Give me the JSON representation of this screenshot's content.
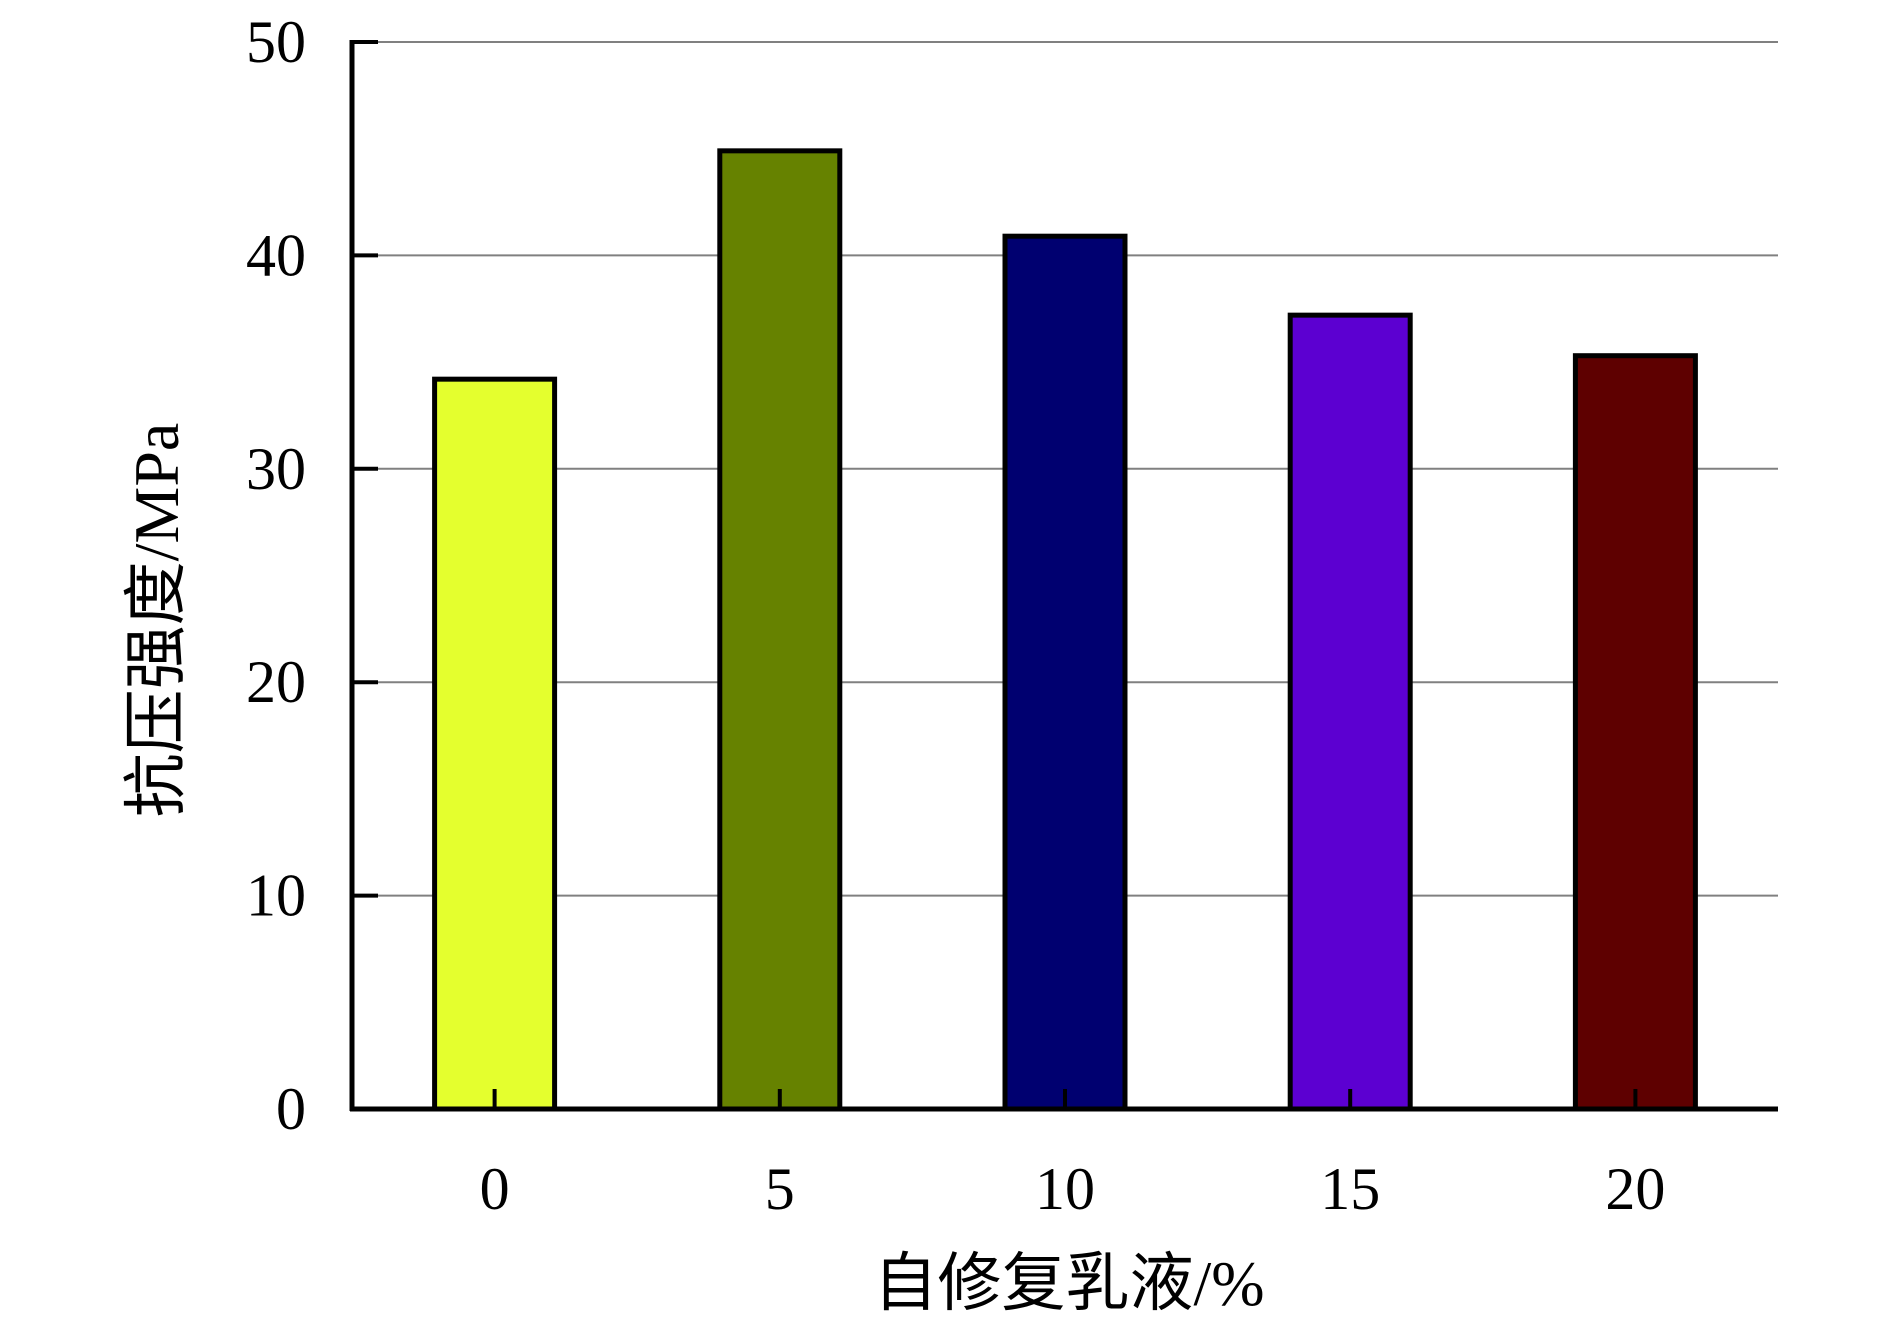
{
  "chart_data": {
    "type": "bar",
    "title": "",
    "xlabel": "自修复乳液/%",
    "ylabel": "抗压强度/MPa",
    "categories": [
      "0",
      "5",
      "10",
      "15",
      "20"
    ],
    "values": [
      34.2,
      44.9,
      40.9,
      37.2,
      35.3
    ],
    "colors": [
      "#E4FF2E",
      "#668200",
      "#000070",
      "#5C00D1",
      "#5E0000"
    ],
    "ylim": [
      0,
      50
    ],
    "yticks": [
      "0",
      "10",
      "20",
      "30",
      "40",
      "50"
    ],
    "grid": true,
    "legend": "none"
  }
}
